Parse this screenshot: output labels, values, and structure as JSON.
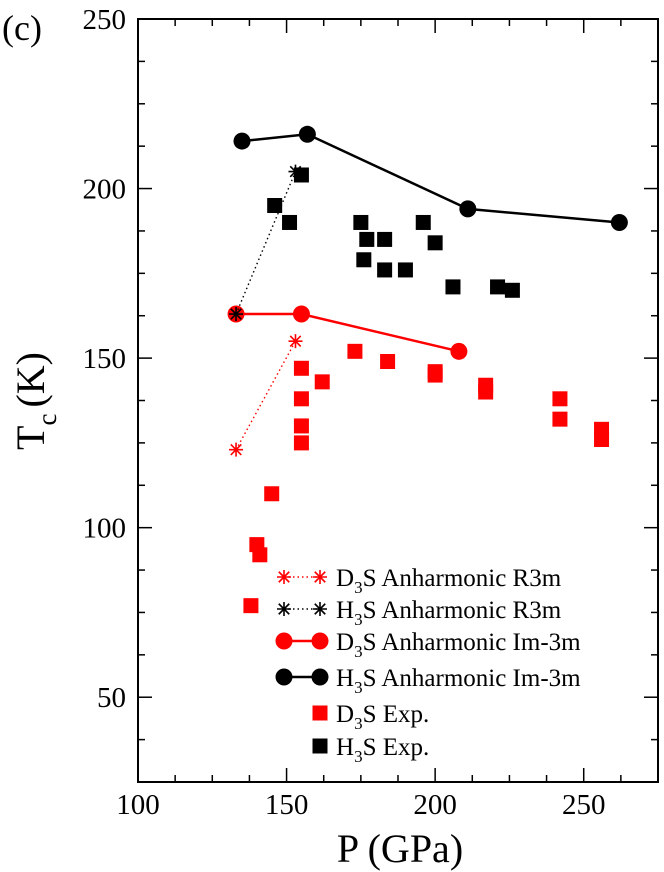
{
  "panel_label": "(c)",
  "colors": {
    "red": "#ff0000",
    "black": "#000000"
  },
  "chart_data": {
    "type": "scatter",
    "title": "",
    "xlabel": {
      "main": "P (GPa)"
    },
    "ylabel": {
      "main": "T",
      "sub": "c",
      "unit": "(K)"
    },
    "xlim": [
      100,
      275
    ],
    "ylim": [
      25,
      250
    ],
    "x_ticks": [
      100,
      150,
      200,
      250
    ],
    "y_ticks": [
      50,
      100,
      150,
      200,
      250
    ],
    "x_tick_labels": [
      "100",
      "150",
      "200",
      "250"
    ],
    "y_tick_labels": [
      "50",
      "100",
      "150",
      "200",
      "250"
    ],
    "grid": false,
    "legend_position": "bottom-right",
    "series": [
      {
        "id": "d3s_r3m",
        "pre": "D",
        "sub": "3",
        "post": "S Anharmonic R3m",
        "color": "#ff0000",
        "marker": "star",
        "line": "dotted",
        "points": [
          [
            133,
            123
          ],
          [
            153,
            155
          ]
        ]
      },
      {
        "id": "h3s_r3m",
        "pre": "H",
        "sub": "3",
        "post": "S Anharmonic R3m",
        "color": "#000000",
        "marker": "star",
        "line": "dotted",
        "points": [
          [
            133,
            163
          ],
          [
            153,
            205
          ]
        ]
      },
      {
        "id": "d3s_im3m",
        "pre": "D",
        "sub": "3",
        "post": "S Anharmonic Im-3m",
        "color": "#ff0000",
        "marker": "circle",
        "line": "solid",
        "points": [
          [
            133,
            163
          ],
          [
            155,
            163
          ],
          [
            208,
            152
          ]
        ]
      },
      {
        "id": "h3s_im3m",
        "pre": "H",
        "sub": "3",
        "post": "S Anharmonic Im-3m",
        "color": "#000000",
        "marker": "circle",
        "line": "solid",
        "points": [
          [
            135,
            214
          ],
          [
            157,
            216
          ],
          [
            211,
            194
          ],
          [
            262,
            190
          ]
        ]
      },
      {
        "id": "d3s_exp",
        "pre": "D",
        "sub": "3",
        "post": "S Exp.",
        "color": "#ff0000",
        "marker": "square",
        "line": "none",
        "points": [
          [
            138,
            77
          ],
          [
            140,
            95
          ],
          [
            141,
            92
          ],
          [
            145,
            110
          ],
          [
            155,
            147
          ],
          [
            155,
            138
          ],
          [
            155,
            130
          ],
          [
            155,
            125
          ],
          [
            162,
            143
          ],
          [
            173,
            152
          ],
          [
            184,
            149
          ],
          [
            200,
            146
          ],
          [
            200,
            145
          ],
          [
            217,
            142
          ],
          [
            217,
            140
          ],
          [
            242,
            138
          ],
          [
            242,
            132
          ],
          [
            256,
            129
          ],
          [
            256,
            126
          ]
        ]
      },
      {
        "id": "h3s_exp",
        "pre": "H",
        "sub": "3",
        "post": "S Exp.",
        "color": "#000000",
        "marker": "square",
        "line": "none",
        "points": [
          [
            146,
            195
          ],
          [
            151,
            190
          ],
          [
            155,
            204
          ],
          [
            175,
            190
          ],
          [
            177,
            185
          ],
          [
            176,
            179
          ],
          [
            183,
            185
          ],
          [
            183,
            176
          ],
          [
            190,
            176
          ],
          [
            196,
            190
          ],
          [
            200,
            184
          ],
          [
            206,
            171
          ],
          [
            221,
            171
          ],
          [
            226,
            170
          ]
        ]
      }
    ]
  }
}
